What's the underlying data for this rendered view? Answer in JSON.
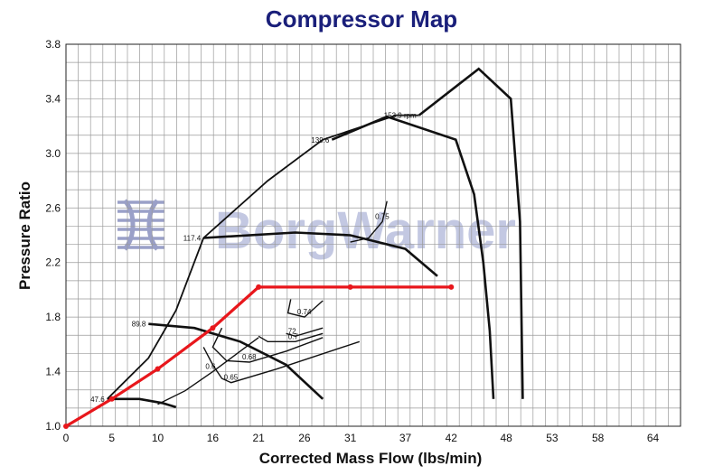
{
  "chart_data": {
    "type": "line",
    "title": "Compressor Map",
    "xlabel": "Corrected Mass Flow (lbs/min)",
    "ylabel": "Pressure Ratio",
    "xlim": [
      0,
      67
    ],
    "ylim": [
      1.0,
      3.8
    ],
    "x_ticks": [
      0,
      5,
      10,
      16,
      21,
      26,
      31,
      37,
      42,
      48,
      53,
      58,
      64
    ],
    "y_ticks": [
      "1.0",
      "1.4",
      "1.8",
      "2.2",
      "2.6",
      "3.0",
      "3.4",
      "3.8"
    ],
    "grid": true,
    "watermark": "BorgWarner",
    "speed_lines": [
      {
        "label": "153.9 rpm",
        "x": [
          38.5,
          45,
          48.5,
          49.5,
          49.8
        ],
        "y": [
          3.28,
          3.62,
          3.4,
          2.5,
          1.2
        ]
      },
      {
        "label": "139.6",
        "x": [
          29,
          35,
          42.5,
          44.5,
          45.5,
          46.2,
          46.6
        ],
        "y": [
          3.1,
          3.27,
          3.1,
          2.7,
          2.2,
          1.7,
          1.2
        ]
      },
      {
        "label": "117.4",
        "x": [
          15,
          25,
          31,
          37,
          40.5
        ],
        "y": [
          2.38,
          2.42,
          2.4,
          2.3,
          2.1
        ]
      },
      {
        "label": "89.8",
        "x": [
          9,
          14,
          19,
          24,
          28
        ],
        "y": [
          1.75,
          1.72,
          1.62,
          1.45,
          1.2
        ]
      },
      {
        "label": "47.6",
        "x": [
          4.5,
          8,
          10.5,
          12
        ],
        "y": [
          1.2,
          1.2,
          1.17,
          1.14
        ]
      }
    ],
    "surge_line": {
      "x": [
        4.5,
        6,
        9,
        12,
        15,
        22,
        28,
        36,
        38.5
      ],
      "y": [
        1.2,
        1.3,
        1.5,
        1.85,
        2.38,
        2.8,
        3.1,
        3.28,
        3.28
      ]
    },
    "efficiency_islands": [
      {
        "label": "0.6",
        "x": [
          10,
          13,
          16,
          19,
          21
        ],
        "y": [
          1.16,
          1.26,
          1.4,
          1.55,
          1.65
        ]
      },
      {
        "label": "0.65",
        "x": [
          15,
          16,
          17,
          18,
          23,
          32
        ],
        "y": [
          1.58,
          1.45,
          1.35,
          1.32,
          1.42,
          1.62
        ]
      },
      {
        "label": "0.68",
        "x": [
          17,
          16,
          17.5,
          20,
          24,
          28
        ],
        "y": [
          1.72,
          1.58,
          1.48,
          1.47,
          1.55,
          1.65
        ]
      },
      {
        "label": "0.7",
        "x": [
          21,
          22,
          25,
          28
        ],
        "y": [
          1.66,
          1.62,
          1.62,
          1.68
        ]
      },
      {
        "label": "72",
        "x": [
          24,
          25,
          28
        ],
        "y": [
          1.68,
          1.66,
          1.72
        ]
      },
      {
        "label": "0.74",
        "x": [
          24.5,
          24.2,
          26,
          28
        ],
        "y": [
          1.93,
          1.83,
          1.8,
          1.92
        ]
      },
      {
        "label": "0.75",
        "x": [
          31,
          33,
          34.5,
          35
        ],
        "y": [
          2.35,
          2.38,
          2.5,
          2.65
        ]
      }
    ],
    "overlay_line": {
      "color": "#e8171c",
      "x": [
        0,
        5,
        10,
        16,
        21,
        31,
        42
      ],
      "y": [
        1.0,
        1.2,
        1.42,
        1.72,
        2.02,
        2.02,
        2.02
      ]
    }
  }
}
